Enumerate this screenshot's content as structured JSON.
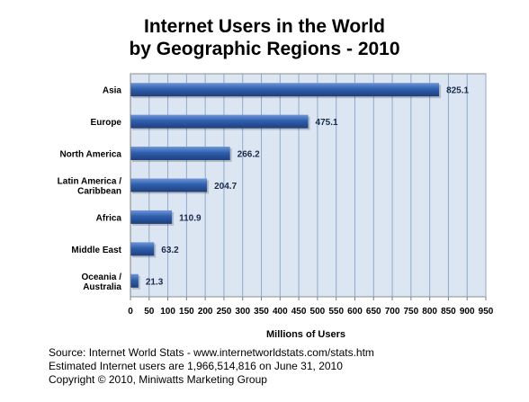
{
  "chart_data": {
    "type": "bar",
    "orientation": "horizontal",
    "title": "Internet Users in the World",
    "subtitle": "by Geographic Regions - 2010",
    "xlabel": "Millions of Users",
    "ylabel": "",
    "categories": [
      "Asia",
      "Europe",
      "North America",
      "Latin America / Caribbean",
      "Africa",
      "Middle East",
      "Oceania / Australia"
    ],
    "category_lines": [
      [
        "Asia"
      ],
      [
        "Europe"
      ],
      [
        "North America"
      ],
      [
        "Latin America /",
        "Caribbean"
      ],
      [
        "Africa"
      ],
      [
        "Middle East"
      ],
      [
        "Oceania  /",
        "Australia"
      ]
    ],
    "values": [
      825.1,
      475.1,
      266.2,
      204.7,
      110.9,
      63.2,
      21.3
    ],
    "value_labels": [
      "825.1",
      "475.1",
      "266.2",
      "204.7",
      "110.9",
      "63.2",
      "21.3"
    ],
    "xlim": [
      0,
      950
    ],
    "xticks": [
      0,
      50,
      100,
      150,
      200,
      250,
      300,
      350,
      400,
      450,
      500,
      550,
      600,
      650,
      700,
      750,
      800,
      850,
      900,
      950
    ],
    "grid": "vertical",
    "legend": "none",
    "colors": {
      "bar": "#2e5fae",
      "bar_light": "#6f95d6",
      "bar_dark": "#1f3f7a",
      "plot_bg": "#dce6f2",
      "grid": "#8ea9cf"
    }
  },
  "footer": {
    "line1": "Source: Internet World Stats - www.internetworldstats.com/stats.htm",
    "line2": "Estimated Internet users are 1,966,514,816 on June 31, 2010",
    "line3": "Copyright © 2010, Miniwatts Marketing Group"
  }
}
